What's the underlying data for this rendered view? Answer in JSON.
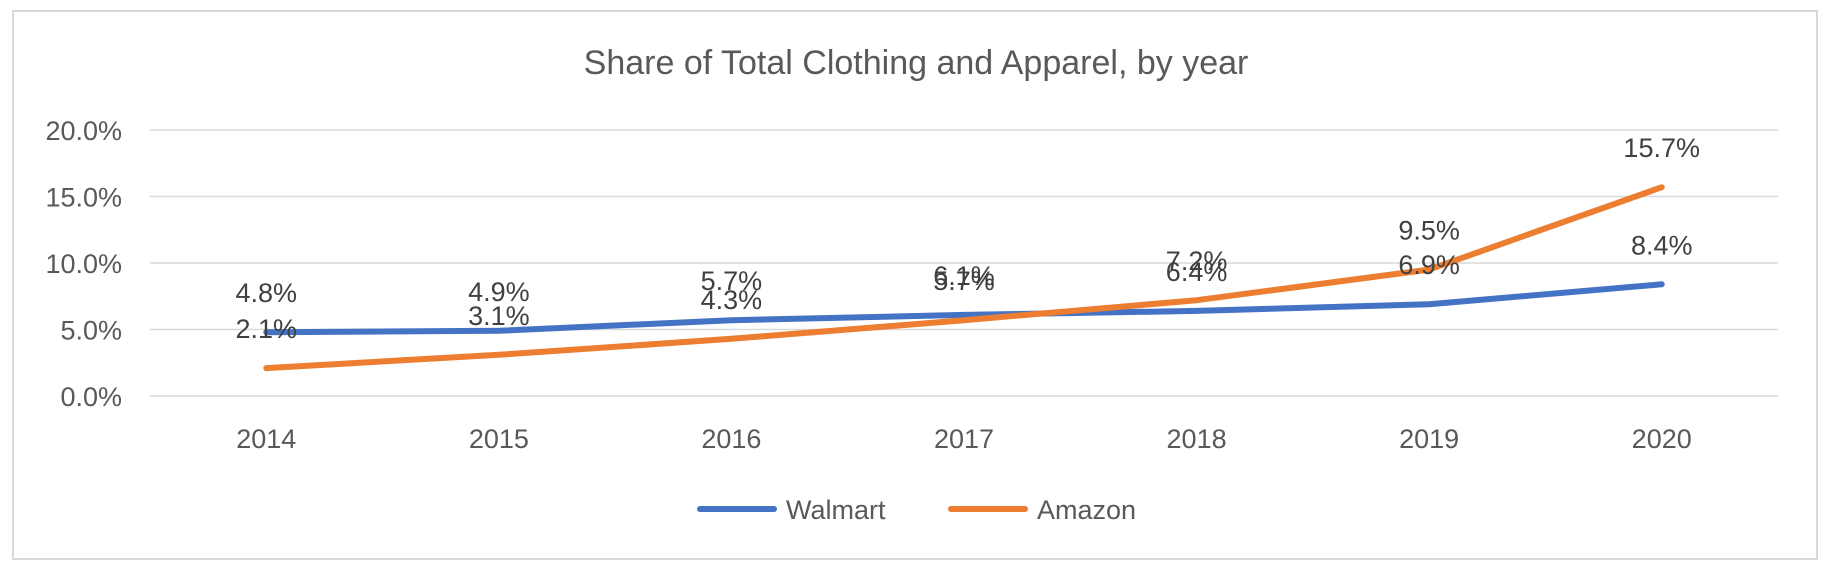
{
  "chart_data": {
    "type": "line",
    "title": "Share of Total Clothing and Apparel, by year",
    "xlabel": "",
    "ylabel": "",
    "categories": [
      "2014",
      "2015",
      "2016",
      "2017",
      "2018",
      "2019",
      "2020"
    ],
    "ylim": [
      0,
      20
    ],
    "yticks": [
      "0.0%",
      "5.0%",
      "10.0%",
      "15.0%",
      "20.0%"
    ],
    "grid": true,
    "legend_position": "bottom",
    "series": [
      {
        "name": "Walmart",
        "color": "#4472C4",
        "values": [
          4.8,
          4.9,
          5.7,
          6.1,
          6.4,
          6.9,
          8.4
        ],
        "labels": [
          "4.8%",
          "4.9%",
          "5.7%",
          "6.1%",
          "6.4%",
          "6.9%",
          "8.4%"
        ]
      },
      {
        "name": "Amazon",
        "color": "#ED7D31",
        "values": [
          2.1,
          3.1,
          4.3,
          5.7,
          7.2,
          9.5,
          15.7
        ],
        "labels": [
          "2.1%",
          "3.1%",
          "4.3%",
          "5.7%",
          "7.2%",
          "9.5%",
          "15.7%"
        ]
      }
    ]
  }
}
